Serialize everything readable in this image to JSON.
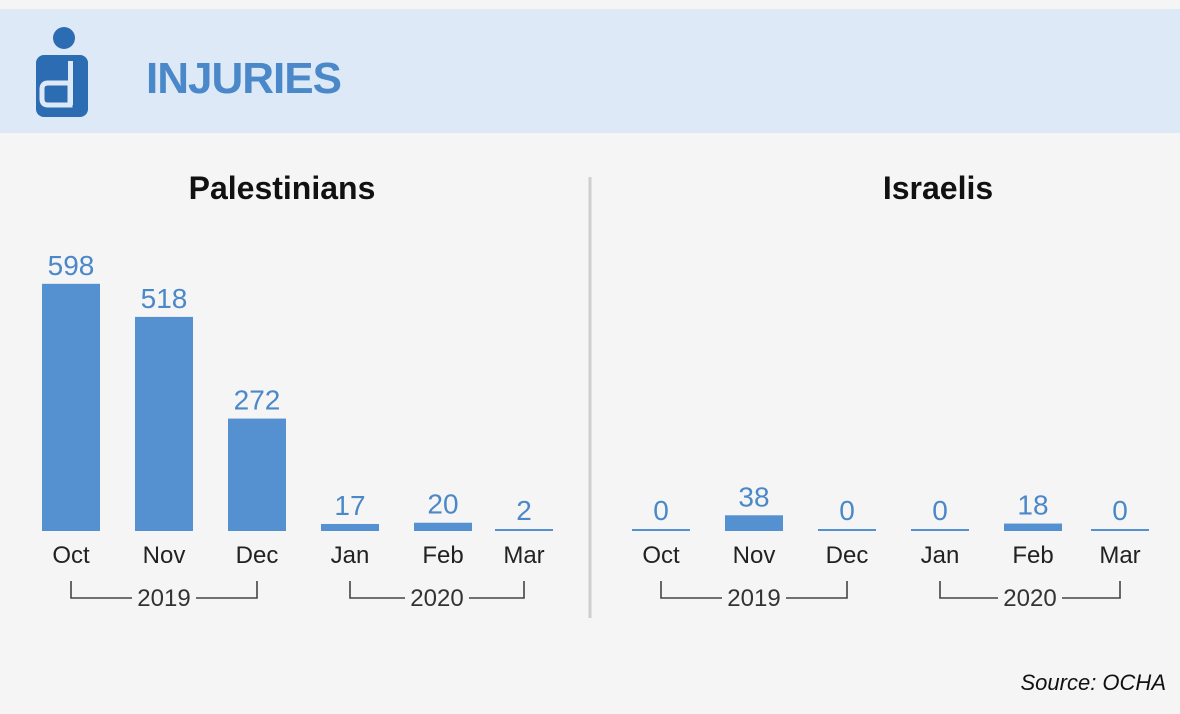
{
  "header": {
    "title": "INJURIES",
    "icon": "injured-person-icon",
    "accent_color": "#4a88c9",
    "bg_color": "#dde9f7"
  },
  "source": "Source: OCHA",
  "bar_color": "#5591d0",
  "chart_data": [
    {
      "type": "bar",
      "title": "Palestinians",
      "categories": [
        "Oct",
        "Nov",
        "Dec",
        "Jan",
        "Feb",
        "Mar"
      ],
      "values": [
        598,
        518,
        272,
        17,
        20,
        2
      ],
      "year_groups": [
        {
          "label": "2019",
          "categories": [
            "Oct",
            "Nov",
            "Dec"
          ]
        },
        {
          "label": "2020",
          "categories": [
            "Jan",
            "Feb",
            "Mar"
          ]
        }
      ],
      "ylim": [
        0,
        600
      ]
    },
    {
      "type": "bar",
      "title": "Israelis",
      "categories": [
        "Oct",
        "Nov",
        "Dec",
        "Jan",
        "Feb",
        "Mar"
      ],
      "values": [
        0,
        38,
        0,
        0,
        18,
        0
      ],
      "year_groups": [
        {
          "label": "2019",
          "categories": [
            "Oct",
            "Nov",
            "Dec"
          ]
        },
        {
          "label": "2020",
          "categories": [
            "Jan",
            "Feb",
            "Mar"
          ]
        }
      ],
      "ylim": [
        0,
        600
      ]
    }
  ]
}
